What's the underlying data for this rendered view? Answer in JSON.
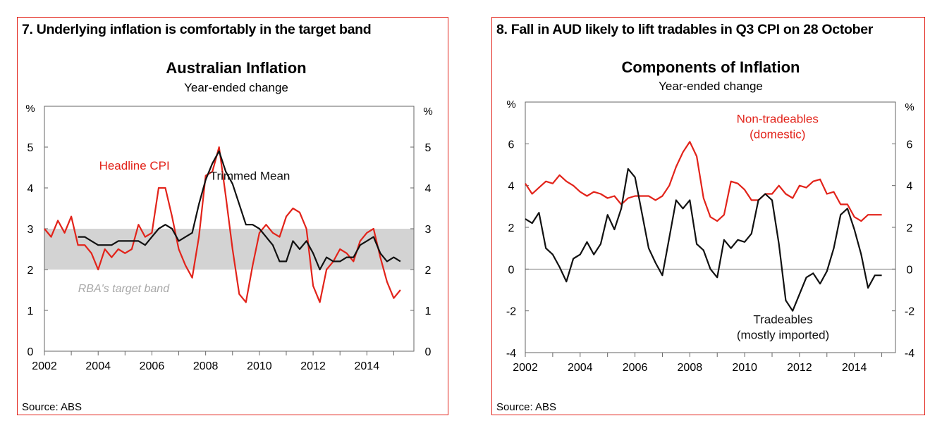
{
  "chart_data": [
    {
      "type": "line",
      "panel_title": "7. Underlying inflation is comfortably in the target band",
      "title": "Australian Inflation",
      "subtitle": "Year-ended change",
      "source": "Source: ABS",
      "ylabel_left": "%",
      "ylabel_right": "%",
      "xlim": [
        2002,
        2015.75
      ],
      "ylim": [
        0,
        6
      ],
      "x_ticks": [
        2002,
        2004,
        2006,
        2008,
        2010,
        2012,
        2014
      ],
      "y_ticks": [
        0,
        1,
        2,
        3,
        4,
        5
      ],
      "band": {
        "label": "RBA's target band",
        "from": 2,
        "to": 3,
        "color": "#d3d3d3"
      },
      "series": [
        {
          "name": "Headline CPI",
          "color": "#e2231a",
          "x": [
            2002.0,
            2002.25,
            2002.5,
            2002.75,
            2003.0,
            2003.25,
            2003.5,
            2003.75,
            2004.0,
            2004.25,
            2004.5,
            2004.75,
            2005.0,
            2005.25,
            2005.5,
            2005.75,
            2006.0,
            2006.25,
            2006.5,
            2006.75,
            2007.0,
            2007.25,
            2007.5,
            2007.75,
            2008.0,
            2008.25,
            2008.5,
            2008.75,
            2009.0,
            2009.25,
            2009.5,
            2009.75,
            2010.0,
            2010.25,
            2010.5,
            2010.75,
            2011.0,
            2011.25,
            2011.5,
            2011.75,
            2012.0,
            2012.25,
            2012.5,
            2012.75,
            2013.0,
            2013.25,
            2013.5,
            2013.75,
            2014.0,
            2014.25,
            2014.5,
            2014.75,
            2015.0,
            2015.25
          ],
          "values": [
            3.0,
            2.8,
            3.2,
            2.9,
            3.3,
            2.6,
            2.6,
            2.4,
            2.0,
            2.5,
            2.3,
            2.5,
            2.4,
            2.5,
            3.1,
            2.8,
            2.9,
            4.0,
            4.0,
            3.3,
            2.5,
            2.1,
            1.8,
            2.8,
            4.3,
            4.4,
            5.0,
            3.8,
            2.5,
            1.4,
            1.2,
            2.1,
            2.9,
            3.1,
            2.9,
            2.8,
            3.3,
            3.5,
            3.4,
            3.0,
            1.6,
            1.2,
            2.0,
            2.2,
            2.5,
            2.4,
            2.2,
            2.7,
            2.9,
            3.0,
            2.3,
            1.7,
            1.3,
            1.5
          ]
        },
        {
          "name": "Trimmed Mean",
          "color": "#111111",
          "x": [
            2003.25,
            2003.5,
            2003.75,
            2004.0,
            2004.25,
            2004.5,
            2004.75,
            2005.0,
            2005.25,
            2005.5,
            2005.75,
            2006.0,
            2006.25,
            2006.5,
            2006.75,
            2007.0,
            2007.25,
            2007.5,
            2007.75,
            2008.0,
            2008.25,
            2008.5,
            2008.75,
            2009.0,
            2009.25,
            2009.5,
            2009.75,
            2010.0,
            2010.25,
            2010.5,
            2010.75,
            2011.0,
            2011.25,
            2011.5,
            2011.75,
            2012.0,
            2012.25,
            2012.5,
            2012.75,
            2013.0,
            2013.25,
            2013.5,
            2013.75,
            2014.0,
            2014.25,
            2014.5,
            2014.75,
            2015.0,
            2015.25
          ],
          "values": [
            2.8,
            2.8,
            2.7,
            2.6,
            2.6,
            2.6,
            2.7,
            2.7,
            2.7,
            2.7,
            2.6,
            2.8,
            3.0,
            3.1,
            3.0,
            2.7,
            2.8,
            2.9,
            3.6,
            4.2,
            4.6,
            4.9,
            4.4,
            4.1,
            3.6,
            3.1,
            3.1,
            3.0,
            2.8,
            2.6,
            2.2,
            2.2,
            2.7,
            2.5,
            2.7,
            2.4,
            2.0,
            2.3,
            2.2,
            2.2,
            2.3,
            2.3,
            2.6,
            2.7,
            2.8,
            2.4,
            2.2,
            2.3,
            2.2
          ]
        }
      ]
    },
    {
      "type": "line",
      "panel_title": "8. Fall in AUD likely to lift tradables in Q3 CPI on 28 October",
      "title": "Components of Inflation",
      "subtitle": "Year-ended change",
      "source": "Source: ABS",
      "ylabel_left": "%",
      "ylabel_right": "%",
      "xlim": [
        2002,
        2015.5
      ],
      "ylim": [
        -4,
        8
      ],
      "x_ticks": [
        2002,
        2004,
        2006,
        2008,
        2010,
        2012,
        2014
      ],
      "y_ticks": [
        -4,
        -2,
        0,
        2,
        4,
        6
      ],
      "series": [
        {
          "name": "Non-tradeables\n(domestic)",
          "label_lines": [
            "Non-tradeables",
            "(domestic)"
          ],
          "color": "#e2231a",
          "x": [
            2002.0,
            2002.25,
            2002.5,
            2002.75,
            2003.0,
            2003.25,
            2003.5,
            2003.75,
            2004.0,
            2004.25,
            2004.5,
            2004.75,
            2005.0,
            2005.25,
            2005.5,
            2005.75,
            2006.0,
            2006.25,
            2006.5,
            2006.75,
            2007.0,
            2007.25,
            2007.5,
            2007.75,
            2008.0,
            2008.25,
            2008.5,
            2008.75,
            2009.0,
            2009.25,
            2009.5,
            2009.75,
            2010.0,
            2010.25,
            2010.5,
            2010.75,
            2011.0,
            2011.25,
            2011.5,
            2011.75,
            2012.0,
            2012.25,
            2012.5,
            2012.75,
            2013.0,
            2013.25,
            2013.5,
            2013.75,
            2014.0,
            2014.25,
            2014.5,
            2014.75,
            2015.0
          ],
          "values": [
            4.1,
            3.6,
            3.9,
            4.2,
            4.1,
            4.5,
            4.2,
            4.0,
            3.7,
            3.5,
            3.7,
            3.6,
            3.4,
            3.5,
            3.1,
            3.4,
            3.5,
            3.5,
            3.5,
            3.3,
            3.5,
            4.0,
            4.9,
            5.6,
            6.1,
            5.4,
            3.4,
            2.5,
            2.3,
            2.6,
            4.2,
            4.1,
            3.8,
            3.3,
            3.3,
            3.6,
            3.6,
            4.0,
            3.6,
            3.4,
            4.0,
            3.9,
            4.2,
            4.3,
            3.6,
            3.7,
            3.1,
            3.1,
            2.5,
            2.3,
            2.6,
            2.6,
            2.6
          ]
        },
        {
          "name": "Tradeables\n(mostly imported)",
          "label_lines": [
            "Tradeables",
            "(mostly imported)"
          ],
          "color": "#111111",
          "x": [
            2002.0,
            2002.25,
            2002.5,
            2002.75,
            2003.0,
            2003.25,
            2003.5,
            2003.75,
            2004.0,
            2004.25,
            2004.5,
            2004.75,
            2005.0,
            2005.25,
            2005.5,
            2005.75,
            2006.0,
            2006.25,
            2006.5,
            2006.75,
            2007.0,
            2007.25,
            2007.5,
            2007.75,
            2008.0,
            2008.25,
            2008.5,
            2008.75,
            2009.0,
            2009.25,
            2009.5,
            2009.75,
            2010.0,
            2010.25,
            2010.5,
            2010.75,
            2011.0,
            2011.25,
            2011.5,
            2011.75,
            2012.0,
            2012.25,
            2012.5,
            2012.75,
            2013.0,
            2013.25,
            2013.5,
            2013.75,
            2014.0,
            2014.25,
            2014.5,
            2014.75,
            2015.0
          ],
          "values": [
            2.4,
            2.2,
            2.7,
            1.0,
            0.7,
            0.1,
            -0.6,
            0.5,
            0.7,
            1.3,
            0.7,
            1.2,
            2.6,
            1.9,
            2.9,
            4.8,
            4.4,
            2.7,
            1.0,
            0.3,
            -0.3,
            1.5,
            3.3,
            2.9,
            3.3,
            1.2,
            0.9,
            0.0,
            -0.4,
            1.4,
            1.0,
            1.4,
            1.3,
            1.7,
            3.3,
            3.6,
            3.3,
            1.2,
            -1.5,
            -2.0,
            -1.2,
            -0.4,
            -0.2,
            -0.7,
            -0.1,
            1.0,
            2.6,
            2.9,
            1.9,
            0.7,
            -0.9,
            -0.3,
            -0.3
          ]
        }
      ]
    }
  ]
}
